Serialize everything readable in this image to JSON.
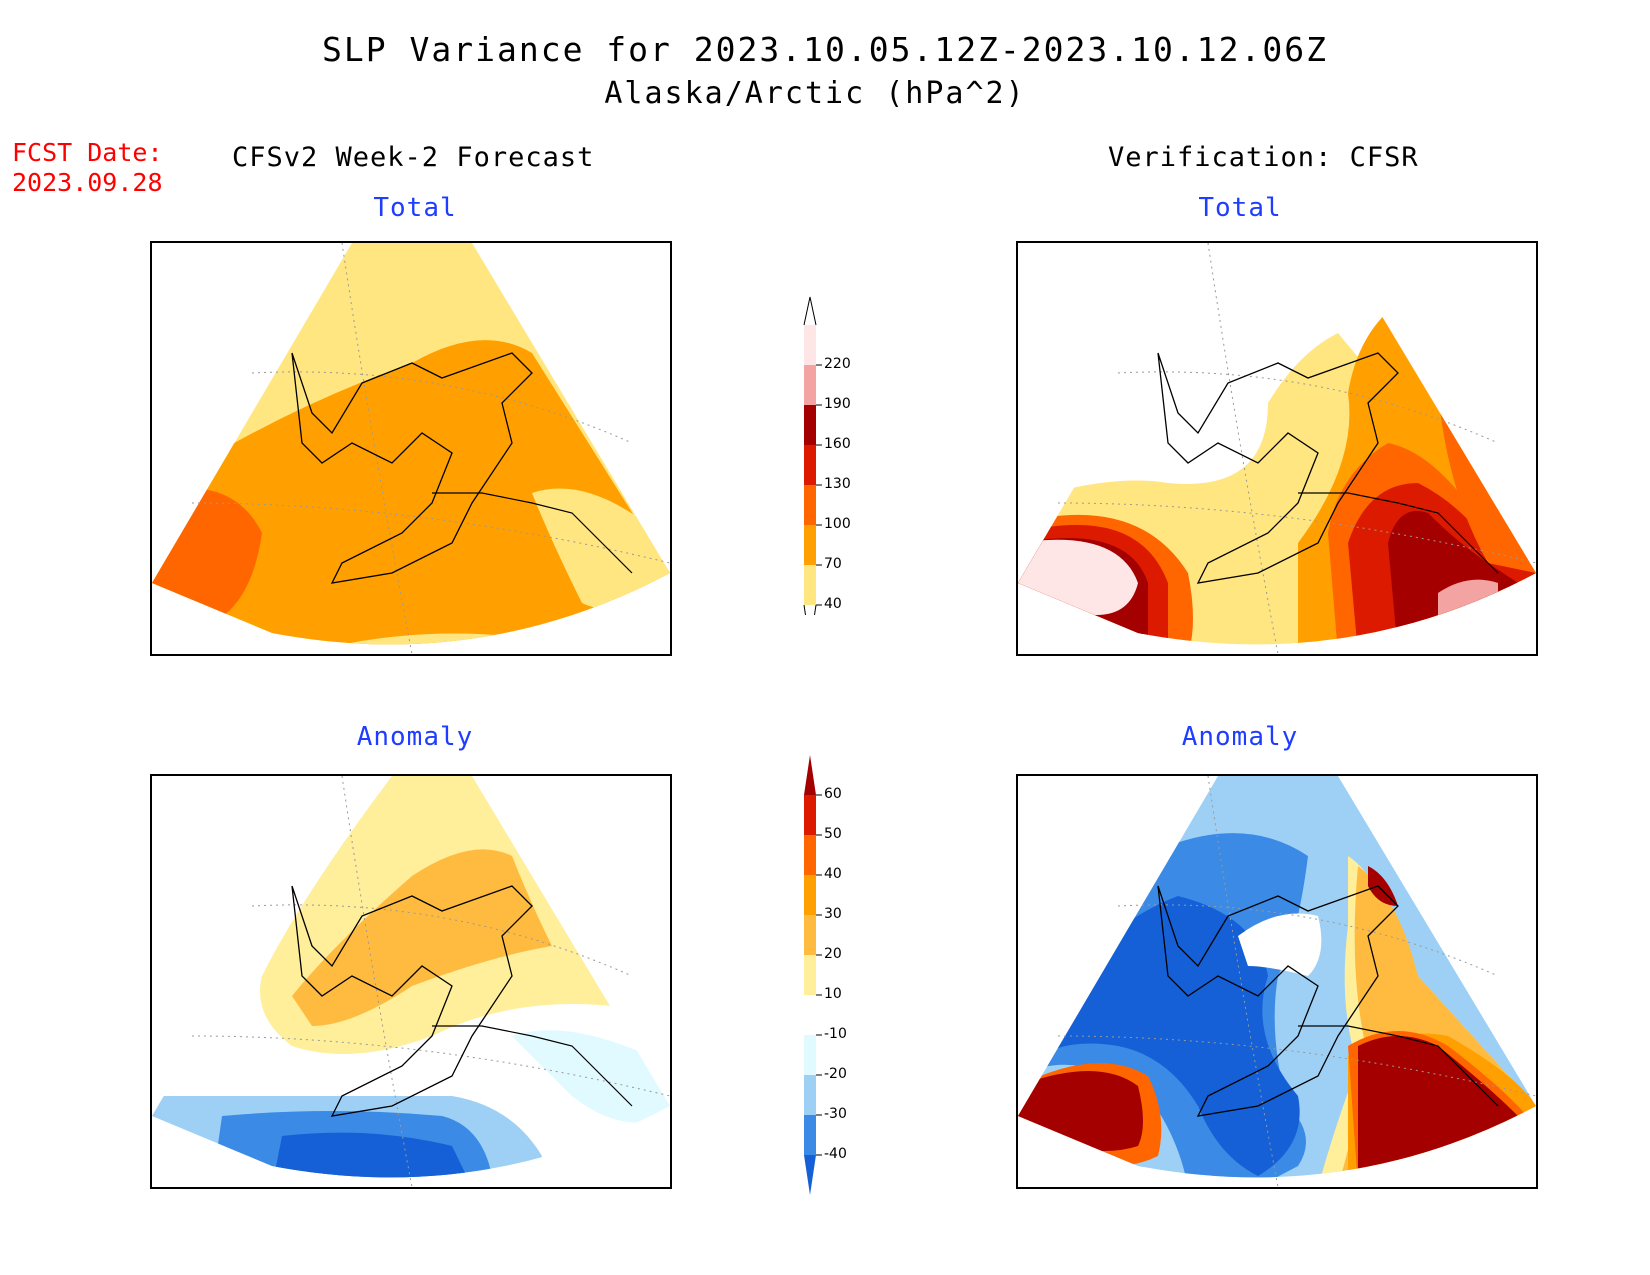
{
  "title": {
    "line1": "SLP Variance for 2023.10.05.12Z-2023.10.12.06Z",
    "line2": "Alaska/Arctic (hPa^2)"
  },
  "fcst": {
    "label": "FCST Date:",
    "date": "2023.09.28"
  },
  "columns": {
    "left": "CFSv2 Week-2 Forecast",
    "right": "Verification: CFSR"
  },
  "panels": {
    "total_label": "Total",
    "anomaly_label": "Anomaly"
  },
  "colorbar_total": {
    "labels": [
      "220",
      "190",
      "160",
      "130",
      "100",
      "70",
      "40"
    ],
    "colors": [
      "#ffe6e6",
      "#f4a3a3",
      "#a50000",
      "#dc1a00",
      "#ff6600",
      "#ffa000",
      "#ffe680"
    ]
  },
  "colorbar_anomaly": {
    "labels": [
      "60",
      "50",
      "40",
      "30",
      "20",
      "10",
      "-10",
      "-20",
      "-30",
      "-40"
    ],
    "colors": [
      "#a50000",
      "#dc1a00",
      "#ff6600",
      "#ffa000",
      "#ffbb40",
      "#ffee9a",
      "#ffffff",
      "#e0faff",
      "#9ed0f5",
      "#3a8ae6",
      "#1560d6"
    ]
  }
}
